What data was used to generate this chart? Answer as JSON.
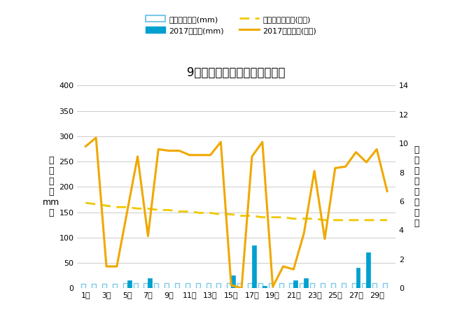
{
  "title": "9月降水量・日照時間（日別）",
  "days": [
    1,
    2,
    3,
    4,
    5,
    6,
    7,
    8,
    9,
    10,
    11,
    12,
    13,
    14,
    15,
    16,
    17,
    18,
    19,
    20,
    21,
    22,
    23,
    24,
    25,
    26,
    27,
    28,
    29,
    30
  ],
  "avg_precip": [
    8,
    8,
    8,
    8,
    10,
    10,
    10,
    10,
    10,
    10,
    10,
    10,
    10,
    10,
    10,
    10,
    10,
    10,
    10,
    10,
    10,
    10,
    10,
    10,
    10,
    10,
    10,
    10,
    10,
    10
  ],
  "precip_2017": [
    0,
    0,
    0,
    0,
    15,
    0,
    20,
    0,
    0,
    0,
    0,
    0,
    0,
    0,
    25,
    0,
    85,
    5,
    0,
    0,
    15,
    20,
    0,
    0,
    0,
    0,
    40,
    70,
    0,
    0
  ],
  "avg_sunshine": [
    5.9,
    5.8,
    5.7,
    5.6,
    5.6,
    5.5,
    5.5,
    5.4,
    5.4,
    5.3,
    5.3,
    5.2,
    5.2,
    5.1,
    5.1,
    5.0,
    5.0,
    4.9,
    4.9,
    4.9,
    4.8,
    4.8,
    4.8,
    4.7,
    4.7,
    4.7,
    4.7,
    4.7,
    4.7,
    4.7
  ],
  "sunshine_2017": [
    9.8,
    10.4,
    1.5,
    1.5,
    5.3,
    9.1,
    3.6,
    9.6,
    9.5,
    9.5,
    9.2,
    9.2,
    9.2,
    10.1,
    0.2,
    0.0,
    9.1,
    10.1,
    0.1,
    1.5,
    1.3,
    3.8,
    8.1,
    3.4,
    8.3,
    8.4,
    9.4,
    8.7,
    9.6,
    6.7
  ],
  "tick_labels": [
    "1日",
    "3日",
    "5日",
    "7日",
    "9日",
    "11日",
    "13日",
    "15日",
    "17日",
    "19日",
    "21日",
    "23日",
    "25日",
    "27日",
    "29日"
  ],
  "tick_positions": [
    1,
    3,
    5,
    7,
    9,
    11,
    13,
    15,
    17,
    19,
    21,
    23,
    25,
    27,
    29
  ],
  "ylim_left": [
    0,
    400
  ],
  "ylim_right": [
    0,
    14
  ],
  "yticks_left": [
    0,
    50,
    100,
    150,
    200,
    250,
    300,
    350,
    400
  ],
  "yticks_right": [
    0,
    2,
    4,
    6,
    8,
    10,
    12,
    14
  ],
  "ylabel_left": "降\n水\n量\n（\nmm\n）",
  "ylabel_right": "日\n照\n時\n間\n（\n時\n間\n）",
  "color_avg_precip": "#7dc8e8",
  "color_precip_2017": "#00a0d0",
  "color_avg_sunshine": "#f0c800",
  "color_sunshine_2017": "#f0a800",
  "bg_color": "#ffffff",
  "legend_row1": [
    {
      "label": "降水量平年値(mm)",
      "type": "bar_outline",
      "color": "#7dc8e8"
    },
    {
      "label": "2017降水量(mm)",
      "type": "bar_filled",
      "color": "#00a0d0"
    }
  ],
  "legend_row2": [
    {
      "label": "日照時間平年値(時間)",
      "type": "dashed_line",
      "color": "#f0c800"
    },
    {
      "label": "2017日照時間(時間)",
      "type": "solid_line",
      "color": "#f0a800"
    }
  ]
}
